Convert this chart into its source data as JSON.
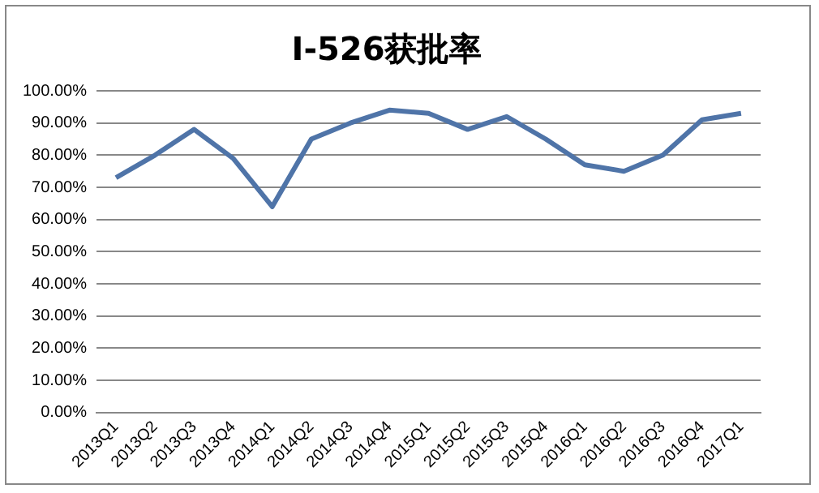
{
  "chart_data": {
    "type": "line",
    "title": "I-526获批率",
    "categories": [
      "2013Q1",
      "2013Q2",
      "2013Q3",
      "2013Q4",
      "2014Q1",
      "2014Q2",
      "2014Q3",
      "2014Q4",
      "2015Q1",
      "2015Q2",
      "2015Q3",
      "2015Q4",
      "2016Q1",
      "2016Q2",
      "2016Q3",
      "2016Q4",
      "2017Q1"
    ],
    "series": [
      {
        "color": "#4f74a8",
        "values": [
          73,
          80,
          88,
          79,
          64,
          85,
          90,
          94,
          93,
          88,
          92,
          85,
          77,
          75,
          80,
          91,
          93
        ]
      }
    ],
    "ylim": [
      0,
      100
    ],
    "yticks": [
      {
        "value": 0,
        "label": "0.00%"
      },
      {
        "value": 10,
        "label": "10.00%"
      },
      {
        "value": 20,
        "label": "20.00%"
      },
      {
        "value": 30,
        "label": "30.00%"
      },
      {
        "value": 40,
        "label": "40.00%"
      },
      {
        "value": 50,
        "label": "50.00%"
      },
      {
        "value": 60,
        "label": "60.00%"
      },
      {
        "value": 70,
        "label": "70.00%"
      },
      {
        "value": 80,
        "label": "80.00%"
      },
      {
        "value": 90,
        "label": "90.00%"
      },
      {
        "value": 100,
        "label": "100.00%"
      }
    ],
    "grid": "y",
    "legend": false,
    "marker": "none",
    "line_style": "solid"
  }
}
